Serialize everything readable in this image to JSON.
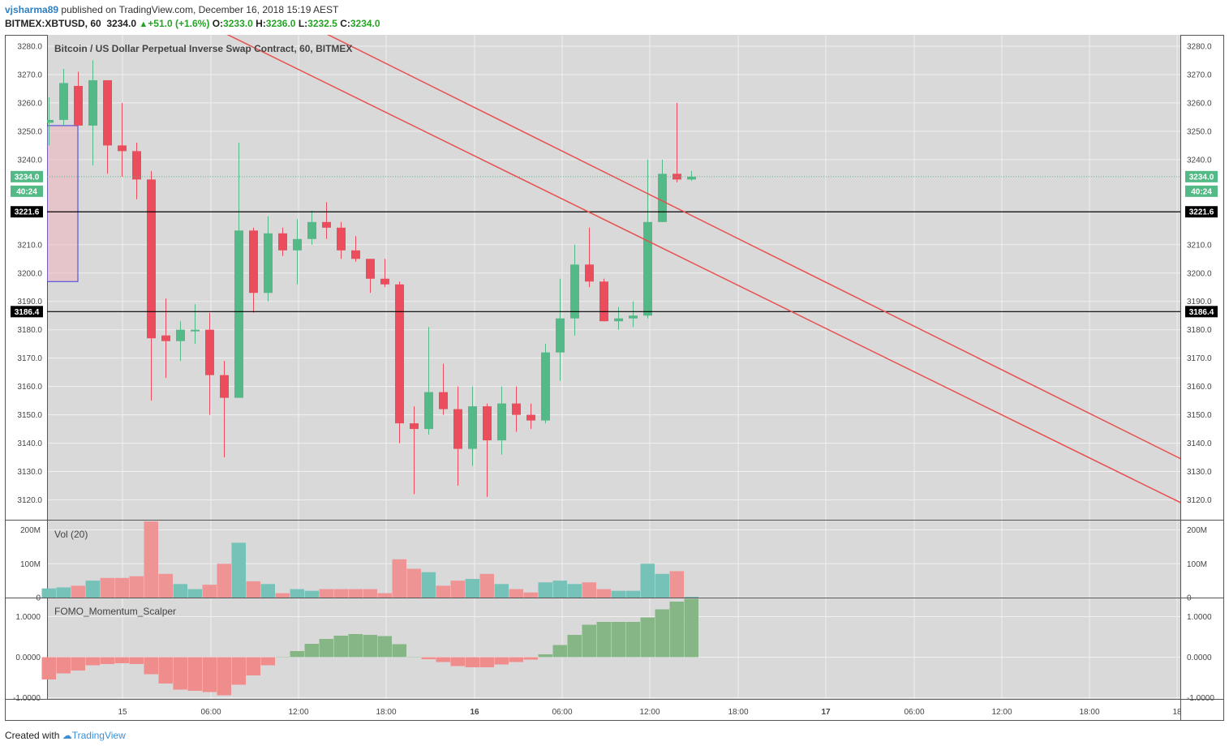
{
  "header": {
    "author": "vjsharma89",
    "published_text": "published on TradingView.com, December 16, 2018 15:19 AEST",
    "symbol": "BITMEX:XBTUSD, 60",
    "last": "3234.0",
    "change": "+51.0 (+1.6%)",
    "o_label": "O:",
    "o_value": "3233.0",
    "h_label": "H:",
    "h_value": "3236.0",
    "l_label": "L:",
    "l_value": "3232.5",
    "c_label": "C:",
    "c_value": "3234.0"
  },
  "footer": {
    "created_with": "Created with",
    "brand": "TradingView"
  },
  "colors": {
    "bull": "#53b987",
    "bear": "#eb4d5c",
    "vol_bull": "#76c1b8",
    "vol_bear": "#ef9494",
    "osc_bull": "#86b586",
    "osc_bear": "#ef8c8c",
    "trend": "#e8504f",
    "pane_bg": "#d9d9d9",
    "grid": "#f0f0f0"
  },
  "chart_data": [
    {
      "type": "candlestick",
      "title": "Bitcoin / US Dollar Perpetual Inverse Swap Contract, 60, BITMEX",
      "ylim": [
        3113,
        3284
      ],
      "y_ticks": [
        3120,
        3130,
        3140,
        3150,
        3160,
        3170,
        3180,
        3190,
        3200,
        3210,
        3240,
        3250,
        3260,
        3270,
        3280
      ],
      "x_ticks": [
        "15",
        "06:00",
        "12:00",
        "18:00",
        "16",
        "06:00",
        "12:00",
        "18:00",
        "17",
        "06:00",
        "12:00",
        "18:00",
        "18"
      ],
      "price_labels": {
        "last": "3234.0",
        "countdown": "40:24"
      },
      "horizontal_levels": [
        3221.6,
        3186.4
      ],
      "grid": true,
      "ohlc": [
        [
          3253,
          3262,
          3245,
          3254
        ],
        [
          3254,
          3272,
          3252,
          3267
        ],
        [
          3266,
          3271,
          3252,
          3252
        ],
        [
          3252,
          3275,
          3238,
          3268
        ],
        [
          3268,
          3268,
          3235,
          3245
        ],
        [
          3245,
          3260,
          3234,
          3243
        ],
        [
          3243,
          3246,
          3226,
          3233
        ],
        [
          3233,
          3236,
          3155,
          3177
        ],
        [
          3178,
          3191,
          3163,
          3176
        ],
        [
          3176,
          3183,
          3169,
          3180
        ],
        [
          3180,
          3189,
          3175,
          3180
        ],
        [
          3180,
          3186,
          3150,
          3164
        ],
        [
          3164,
          3169,
          3135,
          3156
        ],
        [
          3156,
          3246,
          3156,
          3215
        ],
        [
          3215,
          3216,
          3186,
          3193
        ],
        [
          3193,
          3220,
          3190,
          3214
        ],
        [
          3214,
          3216,
          3206,
          3208
        ],
        [
          3208,
          3219,
          3196,
          3212
        ],
        [
          3212,
          3222,
          3210,
          3218
        ],
        [
          3218,
          3225,
          3212,
          3216
        ],
        [
          3216,
          3218,
          3205,
          3208
        ],
        [
          3208,
          3213,
          3204,
          3205
        ],
        [
          3205,
          3205,
          3193,
          3198
        ],
        [
          3198,
          3205,
          3195,
          3196
        ],
        [
          3196,
          3197,
          3140,
          3147
        ],
        [
          3147,
          3153,
          3122,
          3145
        ],
        [
          3145,
          3181,
          3143,
          3158
        ],
        [
          3158,
          3168,
          3150,
          3152
        ],
        [
          3152,
          3160,
          3125,
          3138
        ],
        [
          3138,
          3160,
          3132,
          3153
        ],
        [
          3153,
          3154,
          3121,
          3141
        ],
        [
          3141,
          3160,
          3136,
          3154
        ],
        [
          3154,
          3160,
          3144,
          3150
        ],
        [
          3150,
          3154,
          3145,
          3148
        ],
        [
          3148,
          3175,
          3147,
          3172
        ],
        [
          3172,
          3198,
          3162,
          3184
        ],
        [
          3184,
          3210,
          3178,
          3203
        ],
        [
          3203,
          3216,
          3195,
          3197
        ],
        [
          3197,
          3198,
          3183,
          3183
        ],
        [
          3183,
          3188,
          3180,
          3184
        ],
        [
          3184,
          3190,
          3181,
          3185
        ],
        [
          3185,
          3240,
          3184,
          3218
        ],
        [
          3218,
          3240,
          3218,
          3235
        ],
        [
          3235,
          3260,
          3232,
          3233
        ],
        [
          3233,
          3236,
          3232.5,
          3234
        ]
      ],
      "trend_lines": [
        {
          "from": [
            0,
            3333
          ],
          "to": [
            77.5,
            3134.5
          ]
        },
        {
          "from": [
            0,
            3315
          ],
          "to": [
            77.5,
            3119
          ]
        }
      ],
      "selection_box": {
        "from_price": 3252,
        "to_price": 3197
      }
    },
    {
      "type": "bar",
      "title": "Vol (20)",
      "ylim": [
        0,
        230
      ],
      "y_ticks": [
        "0",
        "100M",
        "200M"
      ],
      "values_m": [
        27,
        30,
        35,
        50,
        58,
        58,
        63,
        225,
        70,
        40,
        25,
        38,
        100,
        162,
        48,
        40,
        13,
        25,
        20,
        25,
        25,
        25,
        25,
        13,
        113,
        85,
        75,
        35,
        50,
        55,
        70,
        40,
        25,
        15,
        45,
        50,
        40,
        45,
        25,
        20,
        20,
        100,
        70,
        78,
        2
      ],
      "grid": true
    },
    {
      "type": "bar",
      "title": "FOMO_Momentum_Scalper",
      "ylim": [
        -1.03,
        1.47
      ],
      "y_ticks": [
        "-1.0000",
        "0.0000",
        "1.0000"
      ],
      "values": [
        -0.55,
        -0.4,
        -0.33,
        -0.2,
        -0.17,
        -0.15,
        -0.17,
        -0.42,
        -0.65,
        -0.8,
        -0.83,
        -0.86,
        -0.94,
        -0.68,
        -0.45,
        -0.2,
        0,
        0.15,
        0.33,
        0.45,
        0.53,
        0.57,
        0.55,
        0.52,
        0.32,
        0,
        -0.05,
        -0.12,
        -0.22,
        -0.25,
        -0.25,
        -0.18,
        -0.12,
        -0.06,
        0.07,
        0.3,
        0.55,
        0.8,
        0.87,
        0.87,
        0.87,
        0.98,
        1.18,
        1.37,
        1.44
      ],
      "grid": true
    }
  ]
}
